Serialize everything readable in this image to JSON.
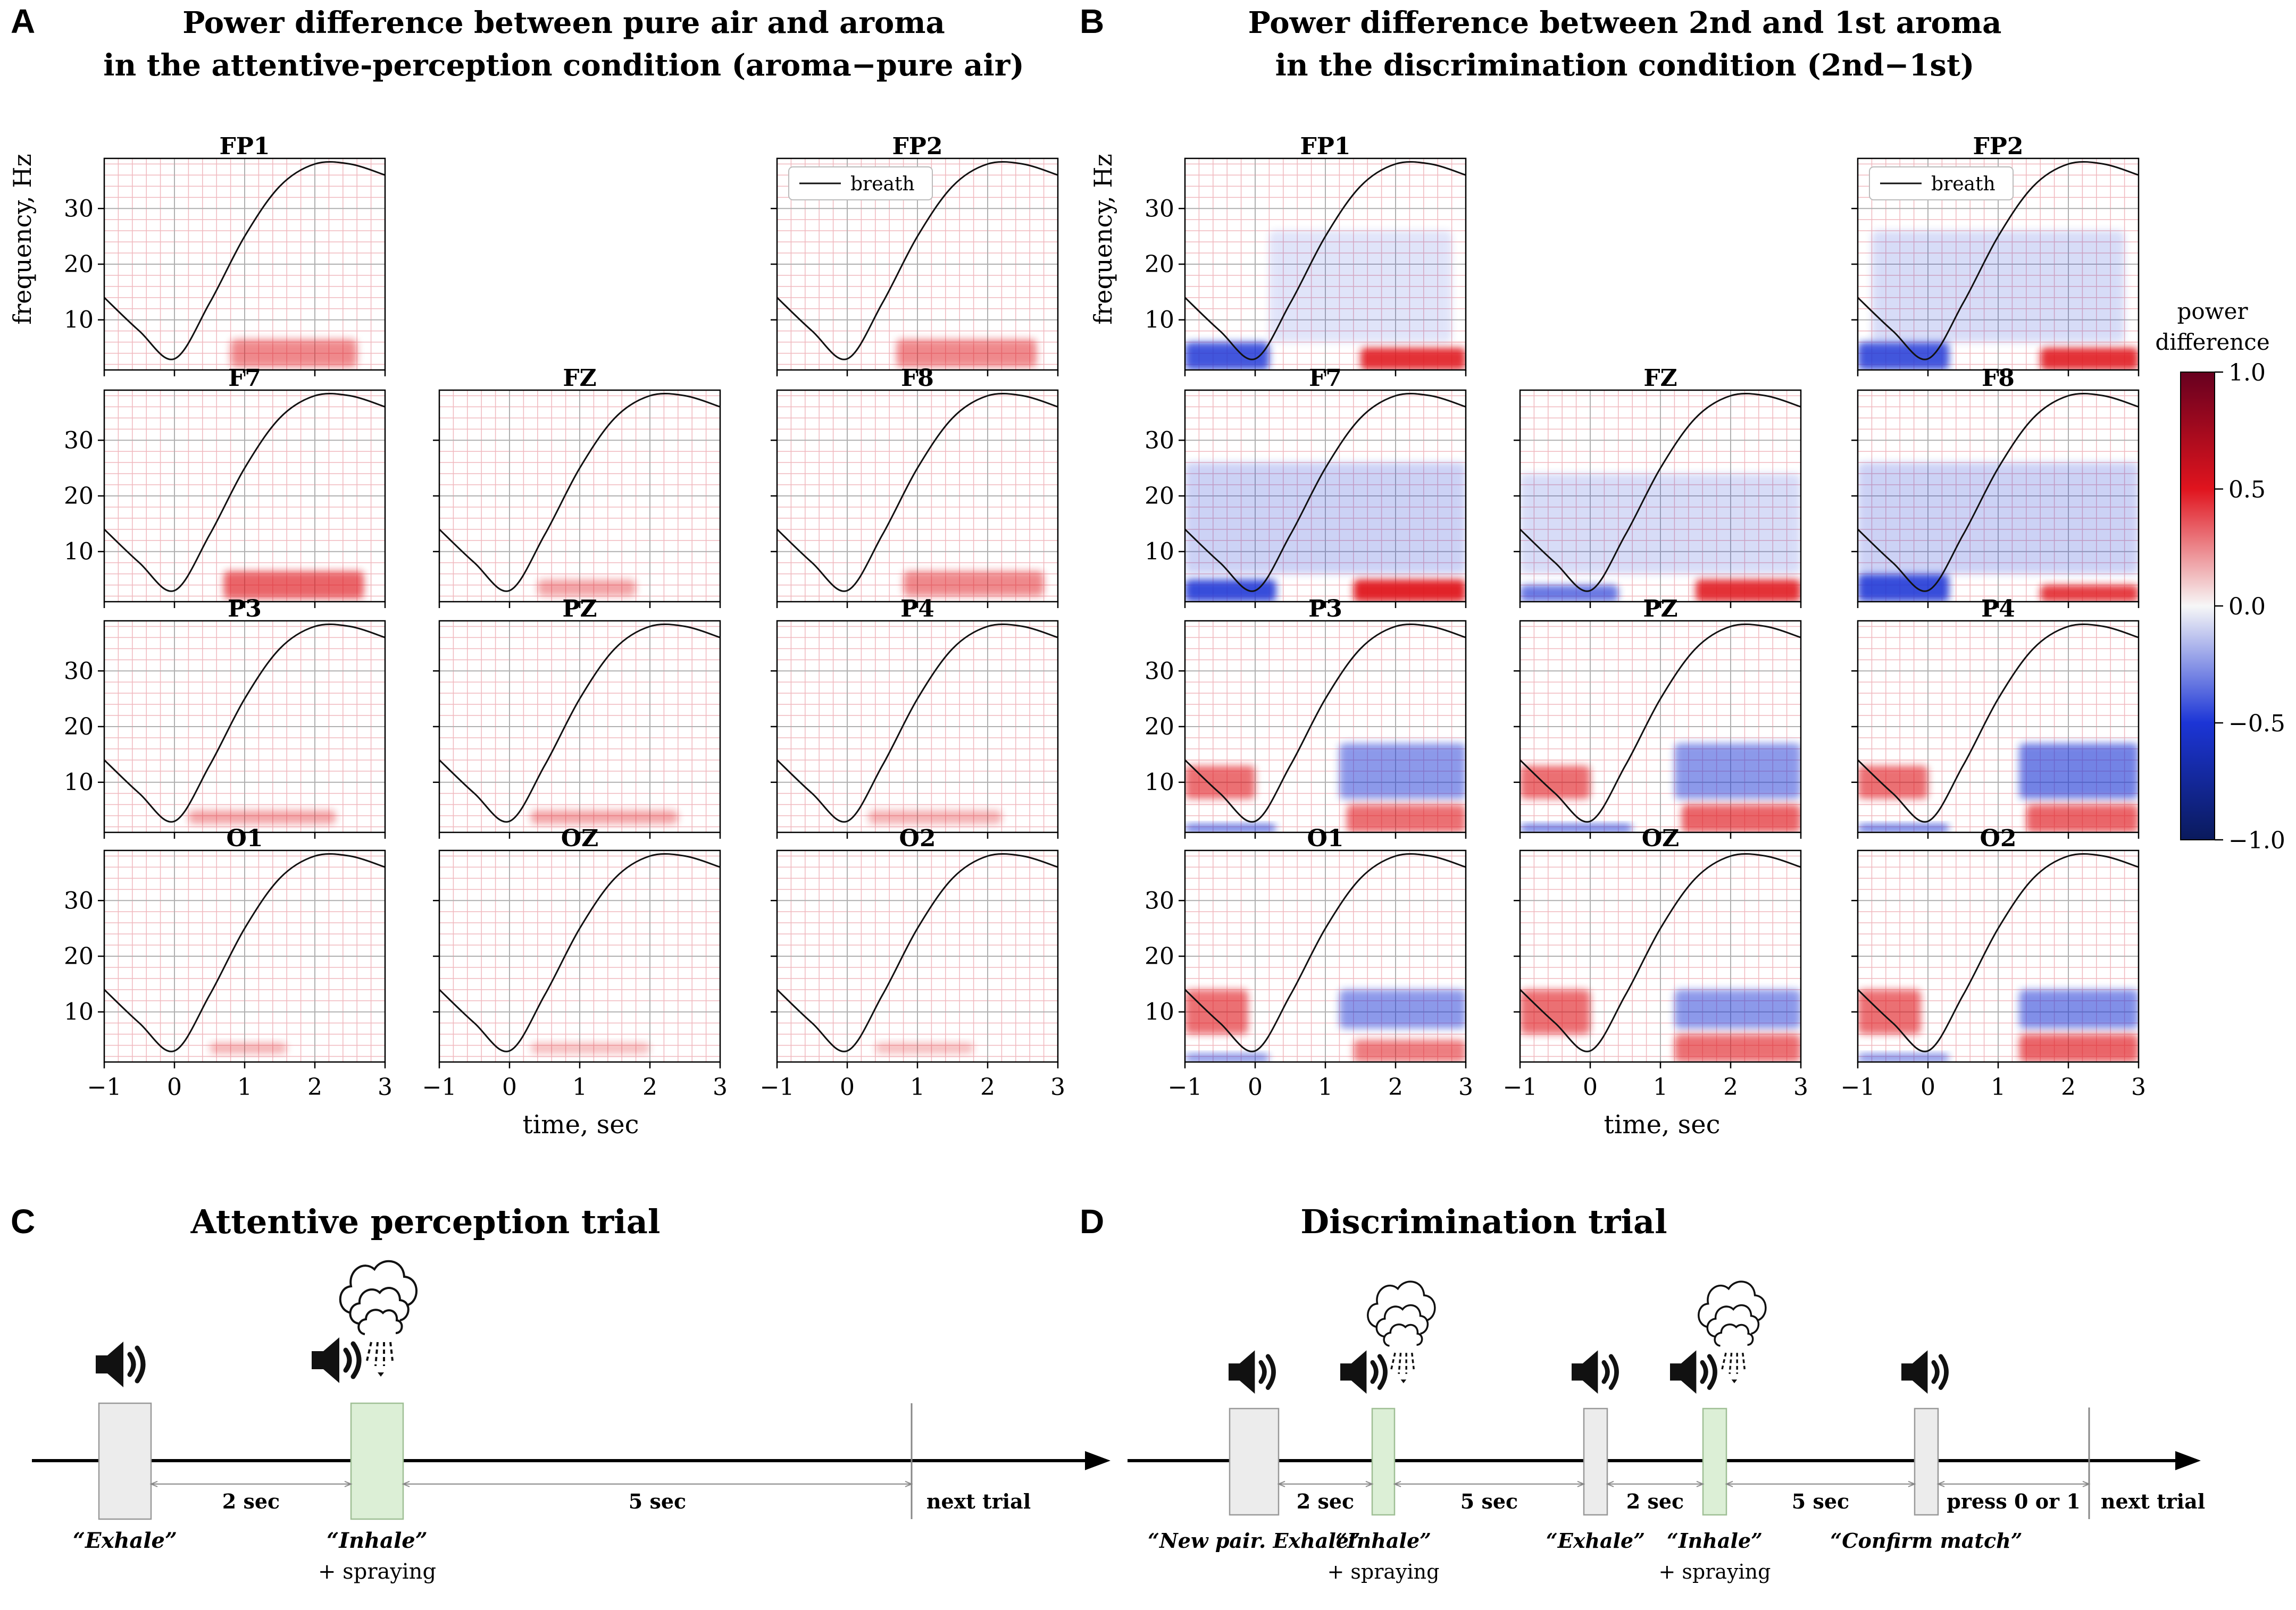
{
  "panels": {
    "A": {
      "letter": "A",
      "title_line1": "Power difference between pure air and aroma",
      "title_line2": "in the attentive-perception condition (aroma−pure air)"
    },
    "B": {
      "letter": "B",
      "title_line1": "Power difference between 2nd and 1st aroma",
      "title_line2": "in the discrimination condition (2nd−1st)"
    },
    "C": {
      "letter": "C",
      "title": "Attentive perception trial"
    },
    "D": {
      "letter": "D",
      "title": "Discrimination trial"
    }
  },
  "axes": {
    "ylabel": "frequency, Hz",
    "xlabel": "time, sec",
    "yticks": [
      "10",
      "20",
      "30"
    ],
    "xticks": [
      "−1",
      "0",
      "1",
      "2",
      "3"
    ],
    "legend_label": "breath"
  },
  "colorbar": {
    "title_line1": "power",
    "title_line2": "difference",
    "ticks": [
      "1.0",
      "0.5",
      "0.0",
      "−0.5",
      "−1.0"
    ]
  },
  "timeline_C": {
    "durations": [
      "2 sec",
      "5 sec"
    ],
    "end_label": "next trial",
    "cues": [
      "“Exhale”",
      "“Inhale”"
    ],
    "spraying": "+ spraying"
  },
  "timeline_D": {
    "durations": [
      "2 sec",
      "5 sec",
      "2 sec",
      "5 sec",
      "press 0 or 1"
    ],
    "end_label": "next trial",
    "cues": [
      "“New pair. Exhale”",
      "“Inhale”",
      "“Exhale”",
      "“Inhale”",
      "“Confirm match”"
    ],
    "spraying": "+ spraying"
  },
  "colors": {
    "red": "#e0141e",
    "blue": "#1c35d6",
    "grid_red": "#f0b8be",
    "green_box": "#dcefd6",
    "gray_box": "#ececec"
  },
  "chart_data": {
    "type": "heatmap",
    "x_range": [
      -1,
      3
    ],
    "y_range": [
      1,
      39
    ],
    "color_range": [
      -1.0,
      1.0
    ],
    "breath_curve": {
      "x": [
        -1,
        -0.5,
        0,
        0.5,
        1,
        1.5,
        2,
        2.5,
        3
      ],
      "y": [
        14,
        8,
        3,
        13,
        25,
        34,
        38,
        38,
        36
      ]
    },
    "A": {
      "channels": [
        {
          "name": "FP1",
          "blobs": [
            {
              "t0": 0.8,
              "t1": 2.6,
              "f0": 1.5,
              "f1": 6.5,
              "v": 0.45
            }
          ]
        },
        {
          "name": "FP2",
          "blobs": [
            {
              "t0": 0.7,
              "t1": 2.7,
              "f0": 1.5,
              "f1": 6.5,
              "v": 0.45
            }
          ]
        },
        {
          "name": "F7",
          "blobs": [
            {
              "t0": 0.7,
              "t1": 2.7,
              "f0": 1.5,
              "f1": 6.5,
              "v": 0.6
            }
          ]
        },
        {
          "name": "FZ",
          "blobs": [
            {
              "t0": 0.4,
              "t1": 1.8,
              "f0": 2,
              "f1": 5,
              "v": 0.35
            }
          ]
        },
        {
          "name": "F8",
          "blobs": [
            {
              "t0": 0.8,
              "t1": 2.8,
              "f0": 2,
              "f1": 6.5,
              "v": 0.45
            }
          ]
        },
        {
          "name": "P3",
          "blobs": [
            {
              "t0": 0.2,
              "t1": 2.3,
              "f0": 2.5,
              "f1": 5,
              "v": 0.35
            }
          ]
        },
        {
          "name": "PZ",
          "blobs": [
            {
              "t0": 0.3,
              "t1": 2.4,
              "f0": 2.5,
              "f1": 5,
              "v": 0.35
            }
          ]
        },
        {
          "name": "P4",
          "blobs": [
            {
              "t0": 0.3,
              "t1": 2.2,
              "f0": 2.5,
              "f1": 5,
              "v": 0.3
            }
          ]
        },
        {
          "name": "O1",
          "blobs": [
            {
              "t0": 0.5,
              "t1": 1.6,
              "f0": 2.5,
              "f1": 4.5,
              "v": 0.3
            }
          ]
        },
        {
          "name": "OZ",
          "blobs": [
            {
              "t0": 0.3,
              "t1": 2.0,
              "f0": 2.5,
              "f1": 4.5,
              "v": 0.25
            }
          ]
        },
        {
          "name": "O2",
          "blobs": [
            {
              "t0": 0.4,
              "t1": 1.8,
              "f0": 2.5,
              "f1": 4.5,
              "v": 0.25
            }
          ]
        }
      ]
    },
    "B": {
      "channels": [
        {
          "name": "FP1",
          "blobs": [
            {
              "t0": -1,
              "t1": 0.2,
              "f0": 1,
              "f1": 6,
              "v": -0.75
            },
            {
              "t0": 1.5,
              "t1": 3,
              "f0": 1,
              "f1": 5,
              "v": 0.8
            },
            {
              "t0": 0.2,
              "t1": 2.8,
              "f0": 6,
              "f1": 26,
              "v": -0.12
            }
          ]
        },
        {
          "name": "FP2",
          "blobs": [
            {
              "t0": -1,
              "t1": 0.3,
              "f0": 1,
              "f1": 6,
              "v": -0.75
            },
            {
              "t0": 1.6,
              "t1": 3,
              "f0": 1,
              "f1": 5,
              "v": 0.8
            },
            {
              "t0": -0.8,
              "t1": 2.8,
              "f0": 6,
              "f1": 26,
              "v": -0.15
            }
          ]
        },
        {
          "name": "F7",
          "blobs": [
            {
              "t0": -1,
              "t1": 0.3,
              "f0": 1,
              "f1": 5,
              "v": -0.8
            },
            {
              "t0": 1.4,
              "t1": 3,
              "f0": 1,
              "f1": 5,
              "v": 0.85
            },
            {
              "t0": -1,
              "t1": 3,
              "f0": 6,
              "f1": 26,
              "v": -0.2
            }
          ]
        },
        {
          "name": "FZ",
          "blobs": [
            {
              "t0": -1,
              "t1": 0.4,
              "f0": 1,
              "f1": 4,
              "v": -0.6
            },
            {
              "t0": 1.5,
              "t1": 3,
              "f0": 1,
              "f1": 5,
              "v": 0.8
            },
            {
              "t0": -1,
              "t1": 3,
              "f0": 6,
              "f1": 24,
              "v": -0.15
            }
          ]
        },
        {
          "name": "F8",
          "blobs": [
            {
              "t0": -1,
              "t1": 0.3,
              "f0": 1,
              "f1": 6,
              "v": -0.8
            },
            {
              "t0": 1.6,
              "t1": 3,
              "f0": 1,
              "f1": 4,
              "v": 0.75
            },
            {
              "t0": -1,
              "t1": 3,
              "f0": 6,
              "f1": 26,
              "v": -0.2
            }
          ]
        },
        {
          "name": "P3",
          "blobs": [
            {
              "t0": -1,
              "t1": 0,
              "f0": 7,
              "f1": 13,
              "v": 0.55
            },
            {
              "t0": -1,
              "t1": 0.3,
              "f0": 1,
              "f1": 2.5,
              "v": -0.6
            },
            {
              "t0": 1.2,
              "t1": 3,
              "f0": 7,
              "f1": 17,
              "v": -0.45
            },
            {
              "t0": 1.3,
              "t1": 3,
              "f0": 1,
              "f1": 6,
              "v": 0.55
            }
          ]
        },
        {
          "name": "PZ",
          "blobs": [
            {
              "t0": -1,
              "t1": 0,
              "f0": 7,
              "f1": 13,
              "v": 0.55
            },
            {
              "t0": -1,
              "t1": 0.6,
              "f0": 1,
              "f1": 2.5,
              "v": -0.6
            },
            {
              "t0": 1.2,
              "t1": 3,
              "f0": 7,
              "f1": 17,
              "v": -0.45
            },
            {
              "t0": 1.3,
              "t1": 3,
              "f0": 1,
              "f1": 6,
              "v": 0.6
            }
          ]
        },
        {
          "name": "P4",
          "blobs": [
            {
              "t0": -1,
              "t1": 0,
              "f0": 7,
              "f1": 13,
              "v": 0.55
            },
            {
              "t0": -1,
              "t1": 0.3,
              "f0": 1,
              "f1": 2.5,
              "v": -0.6
            },
            {
              "t0": 1.3,
              "t1": 3,
              "f0": 7,
              "f1": 17,
              "v": -0.55
            },
            {
              "t0": 1.4,
              "t1": 3,
              "f0": 1,
              "f1": 6,
              "v": 0.6
            }
          ]
        },
        {
          "name": "O1",
          "blobs": [
            {
              "t0": -1,
              "t1": -0.1,
              "f0": 6,
              "f1": 14,
              "v": 0.55
            },
            {
              "t0": -1,
              "t1": 0.2,
              "f0": 1,
              "f1": 2.5,
              "v": -0.5
            },
            {
              "t0": 1.2,
              "t1": 3,
              "f0": 7,
              "f1": 14,
              "v": -0.45
            },
            {
              "t0": 1.4,
              "t1": 3,
              "f0": 1,
              "f1": 5,
              "v": 0.5
            }
          ]
        },
        {
          "name": "OZ",
          "blobs": [
            {
              "t0": -1,
              "t1": 0,
              "f0": 6,
              "f1": 14,
              "v": 0.55
            },
            {
              "t0": 1.2,
              "t1": 3,
              "f0": 7,
              "f1": 14,
              "v": -0.45
            },
            {
              "t0": 1.2,
              "t1": 3,
              "f0": 1,
              "f1": 6,
              "v": 0.55
            }
          ]
        },
        {
          "name": "O2",
          "blobs": [
            {
              "t0": -1,
              "t1": -0.1,
              "f0": 6,
              "f1": 14,
              "v": 0.55
            },
            {
              "t0": -1,
              "t1": 0.3,
              "f0": 1,
              "f1": 2.5,
              "v": -0.5
            },
            {
              "t0": 1.3,
              "t1": 3,
              "f0": 7,
              "f1": 14,
              "v": -0.5
            },
            {
              "t0": 1.3,
              "t1": 3,
              "f0": 1,
              "f1": 6,
              "v": 0.6
            }
          ]
        }
      ]
    }
  }
}
